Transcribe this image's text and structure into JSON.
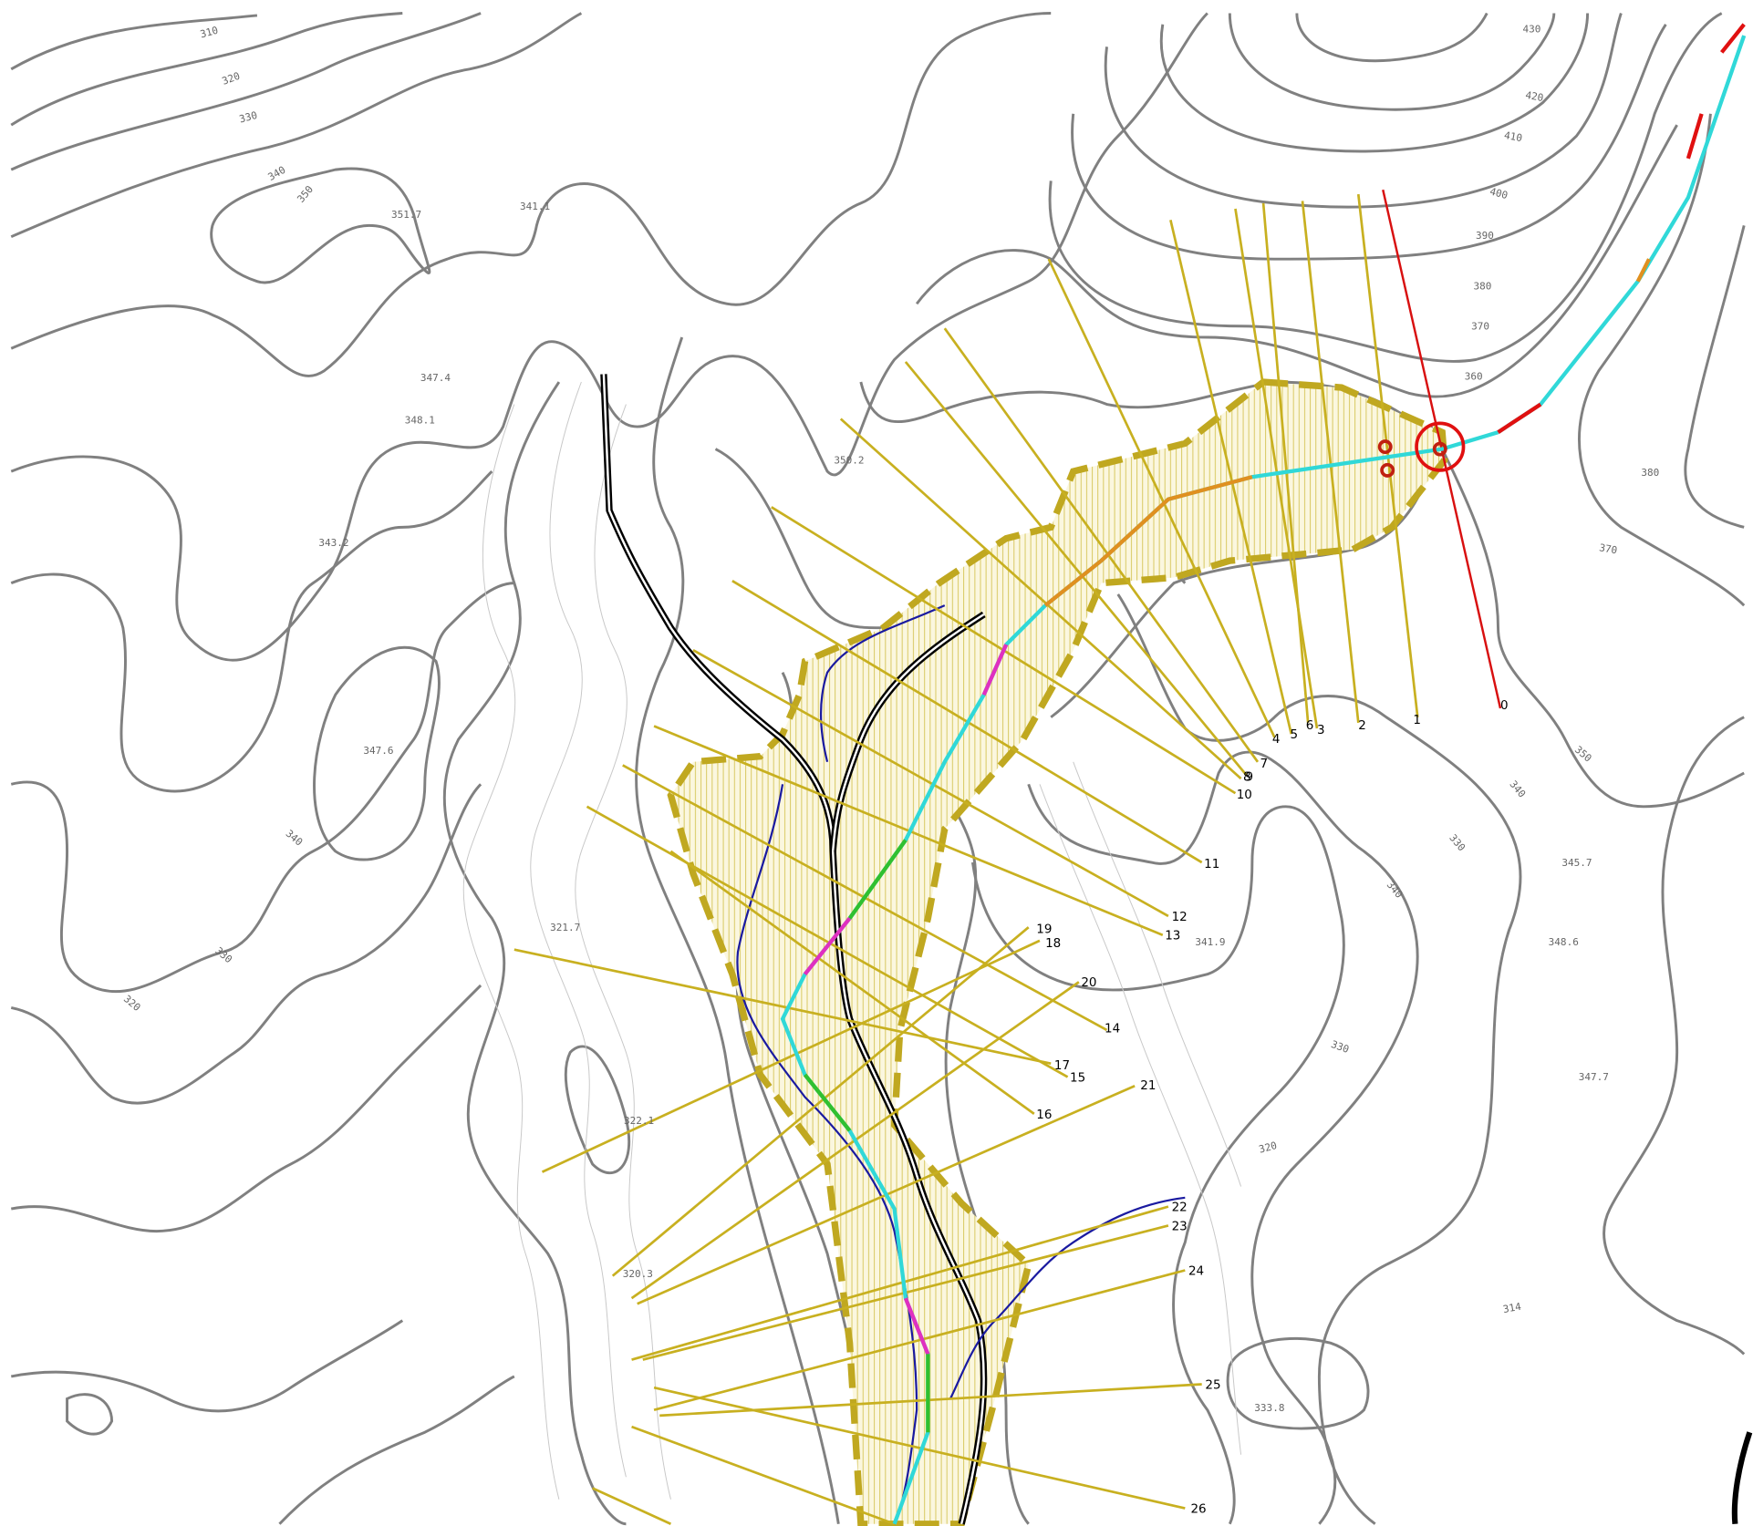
{
  "section_labels": [
    "0",
    "1",
    "2",
    "3",
    "4",
    "5",
    "6",
    "7",
    "8",
    "9",
    "10",
    "11",
    "12",
    "13",
    "14",
    "15",
    "16",
    "17",
    "18",
    "19",
    "20",
    "21",
    "22",
    "23",
    "24",
    "25",
    "26"
  ],
  "elevation_labels": [
    "310",
    "320",
    "330",
    "340",
    "350",
    "351.7",
    "341.1",
    "347.4",
    "348.1",
    "343.2",
    "350.2",
    "347.6",
    "340",
    "330",
    "320",
    "321.7",
    "322.1",
    "320.3",
    "430",
    "420",
    "410",
    "400",
    "390",
    "380",
    "370",
    "360",
    "380",
    "370",
    "350",
    "340",
    "330",
    "345.7",
    "348.6",
    "347.7",
    "341.9",
    "340",
    "330",
    "320",
    "333.8",
    "314"
  ]
}
